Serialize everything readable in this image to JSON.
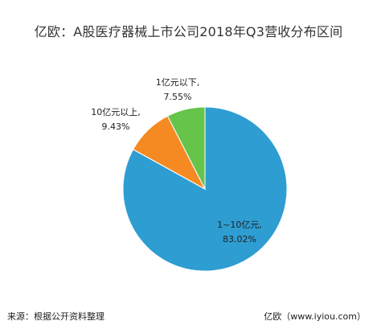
{
  "chart_data": {
    "type": "pie",
    "title": "亿欧：A股医疗器械上市公司2018年Q3营收分布区间",
    "slices": [
      {
        "label": "1~10亿元,",
        "pct_label": "83.02%",
        "value": 83.02,
        "color": "#2e9dd2"
      },
      {
        "label": "10亿元以上,",
        "pct_label": "9.43%",
        "value": 9.43,
        "color": "#f58a22"
      },
      {
        "label": "1亿元以下,",
        "pct_label": "7.55%",
        "value": 7.55,
        "color": "#66c44a"
      }
    ],
    "start": "12 o'clock",
    "direction": "clockwise"
  },
  "footer": {
    "source": "来源：根据公开资料整理",
    "brand": "亿欧（www.iyiou.com）"
  }
}
